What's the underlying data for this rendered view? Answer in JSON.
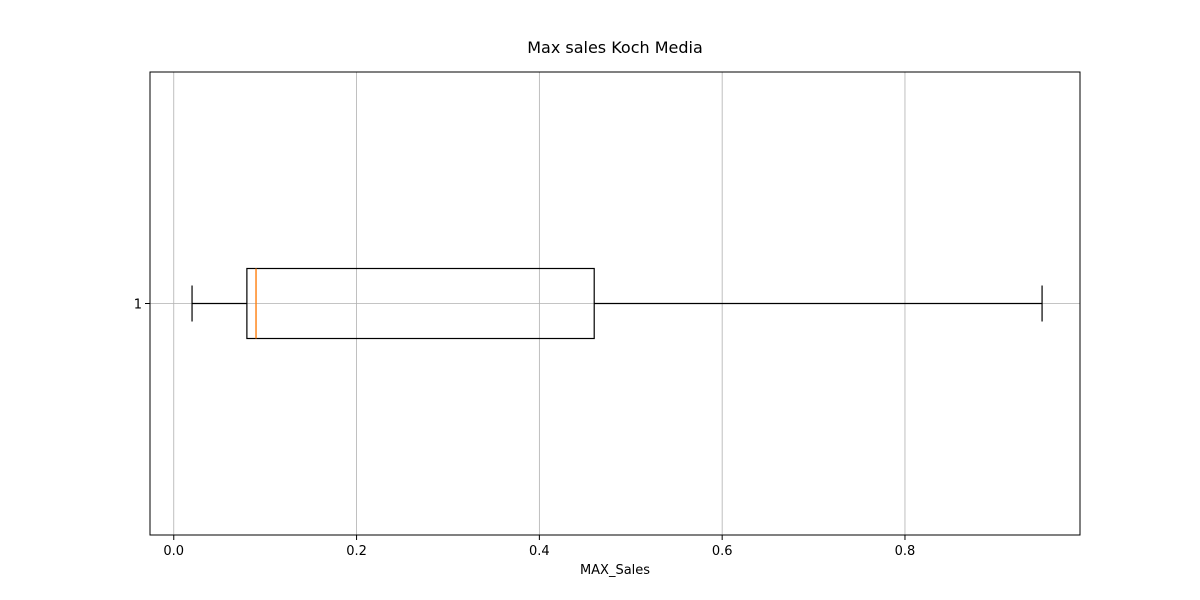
{
  "chart_data": {
    "type": "boxplot",
    "orientation": "horizontal",
    "title": "Max sales Koch Media",
    "xlabel": "MAX_Sales",
    "ylabel": "",
    "xlim": [
      -0.026,
      0.9915
    ],
    "xticks": [
      0.0,
      0.2,
      0.4,
      0.6,
      0.8
    ],
    "xtick_labels": [
      "0.0",
      "0.2",
      "0.4",
      "0.6",
      "0.8"
    ],
    "categories": [
      "1"
    ],
    "boxes": [
      {
        "label": "1",
        "whisker_low": 0.02,
        "q1": 0.08,
        "median": 0.09,
        "q3": 0.46,
        "whisker_high": 0.95
      }
    ],
    "grid": true,
    "colors": {
      "box": "#000000",
      "median": "#ff7f0e",
      "grid": "#b0b0b0"
    }
  }
}
